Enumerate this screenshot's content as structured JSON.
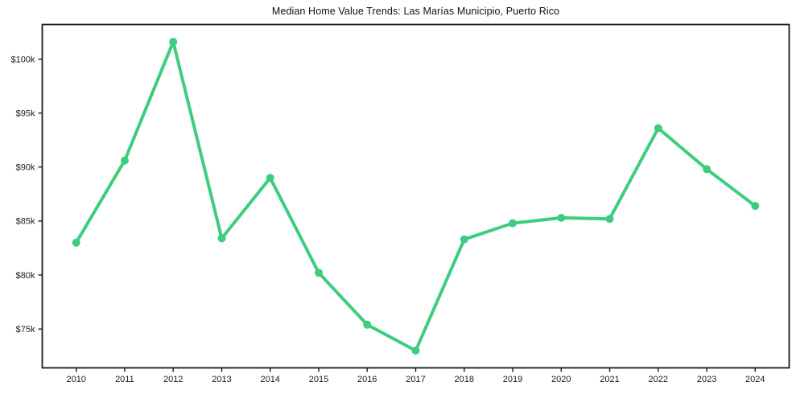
{
  "chart_data": {
    "type": "line",
    "title": "Median Home Value Trends: Las Marías Municipio, Puerto Rico",
    "xlabel": "",
    "ylabel": "",
    "x": [
      2010,
      2011,
      2012,
      2013,
      2014,
      2015,
      2016,
      2017,
      2018,
      2019,
      2020,
      2021,
      2022,
      2023,
      2024
    ],
    "values": [
      83000,
      90600,
      101600,
      83400,
      89000,
      80200,
      75400,
      73000,
      83300,
      84800,
      85300,
      85200,
      93600,
      89800,
      86400
    ],
    "xlim": [
      2009.3,
      2024.7
    ],
    "ylim": [
      71400,
      103200
    ],
    "grid": false,
    "legend": false,
    "xticks": [
      {
        "value": 2010,
        "label": "2010"
      },
      {
        "value": 2011,
        "label": "2011"
      },
      {
        "value": 2012,
        "label": "2012"
      },
      {
        "value": 2013,
        "label": "2013"
      },
      {
        "value": 2014,
        "label": "2014"
      },
      {
        "value": 2015,
        "label": "2015"
      },
      {
        "value": 2016,
        "label": "2016"
      },
      {
        "value": 2017,
        "label": "2017"
      },
      {
        "value": 2018,
        "label": "2018"
      },
      {
        "value": 2019,
        "label": "2019"
      },
      {
        "value": 2020,
        "label": "2020"
      },
      {
        "value": 2021,
        "label": "2021"
      },
      {
        "value": 2022,
        "label": "2022"
      },
      {
        "value": 2023,
        "label": "2023"
      },
      {
        "value": 2024,
        "label": "2024"
      }
    ],
    "yticks": [
      {
        "value": 75000,
        "label": "$75k"
      },
      {
        "value": 80000,
        "label": "$80k"
      },
      {
        "value": 85000,
        "label": "$85k"
      },
      {
        "value": 90000,
        "label": "$90k"
      },
      {
        "value": 95000,
        "label": "$95k"
      },
      {
        "value": 100000,
        "label": "$100k"
      }
    ],
    "marker": "circle",
    "colors": {
      "line": "#3ecd7e",
      "marker": "#3ecd7e",
      "axis": "#1a1a1a",
      "text": "#1a1a1a",
      "background": "#ffffff"
    }
  }
}
